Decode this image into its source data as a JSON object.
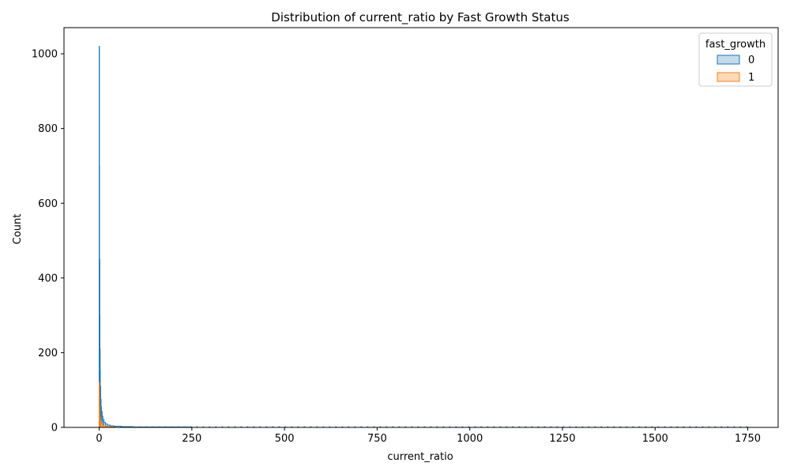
{
  "chart_data": {
    "type": "histogram",
    "title": "Distribution of current_ratio by Fast Growth Status",
    "xlabel": "current_ratio",
    "ylabel": "Count",
    "xlim": [
      -95,
      1832
    ],
    "ylim": [
      0,
      1070
    ],
    "xticks": [
      0,
      250,
      500,
      750,
      1000,
      1250,
      1500,
      1750
    ],
    "yticks": [
      0,
      200,
      400,
      600,
      800,
      1000
    ],
    "legend": {
      "title": "fast_growth",
      "placement": "top-right",
      "entries": [
        {
          "label": "0",
          "color": "#1f77b4",
          "fill": "#c5daec"
        },
        {
          "label": "1",
          "color": "#ff7f0e",
          "fill": "#ffd9b8"
        }
      ]
    },
    "grid": false,
    "series": [
      {
        "name": "0",
        "color": "#1f77b4",
        "fill": "#c5daec",
        "x": [
          0,
          0.5,
          1,
          1.5,
          2,
          2.5,
          3,
          4,
          5,
          6,
          8,
          10,
          13,
          17,
          22,
          30,
          40,
          60,
          90,
          140,
          250
        ],
        "y": [
          1020,
          700,
          450,
          300,
          210,
          150,
          110,
          75,
          55,
          42,
          30,
          20,
          13,
          9,
          6,
          4,
          3,
          2,
          1,
          1,
          0
        ]
      },
      {
        "name": "1",
        "color": "#ff7f0e",
        "fill": "#ffd9b8",
        "x": [
          0,
          0.5,
          1,
          1.5,
          2,
          3,
          5,
          8,
          12,
          20,
          40
        ],
        "y": [
          120,
          80,
          55,
          40,
          28,
          18,
          10,
          6,
          3,
          2,
          0
        ]
      }
    ]
  }
}
